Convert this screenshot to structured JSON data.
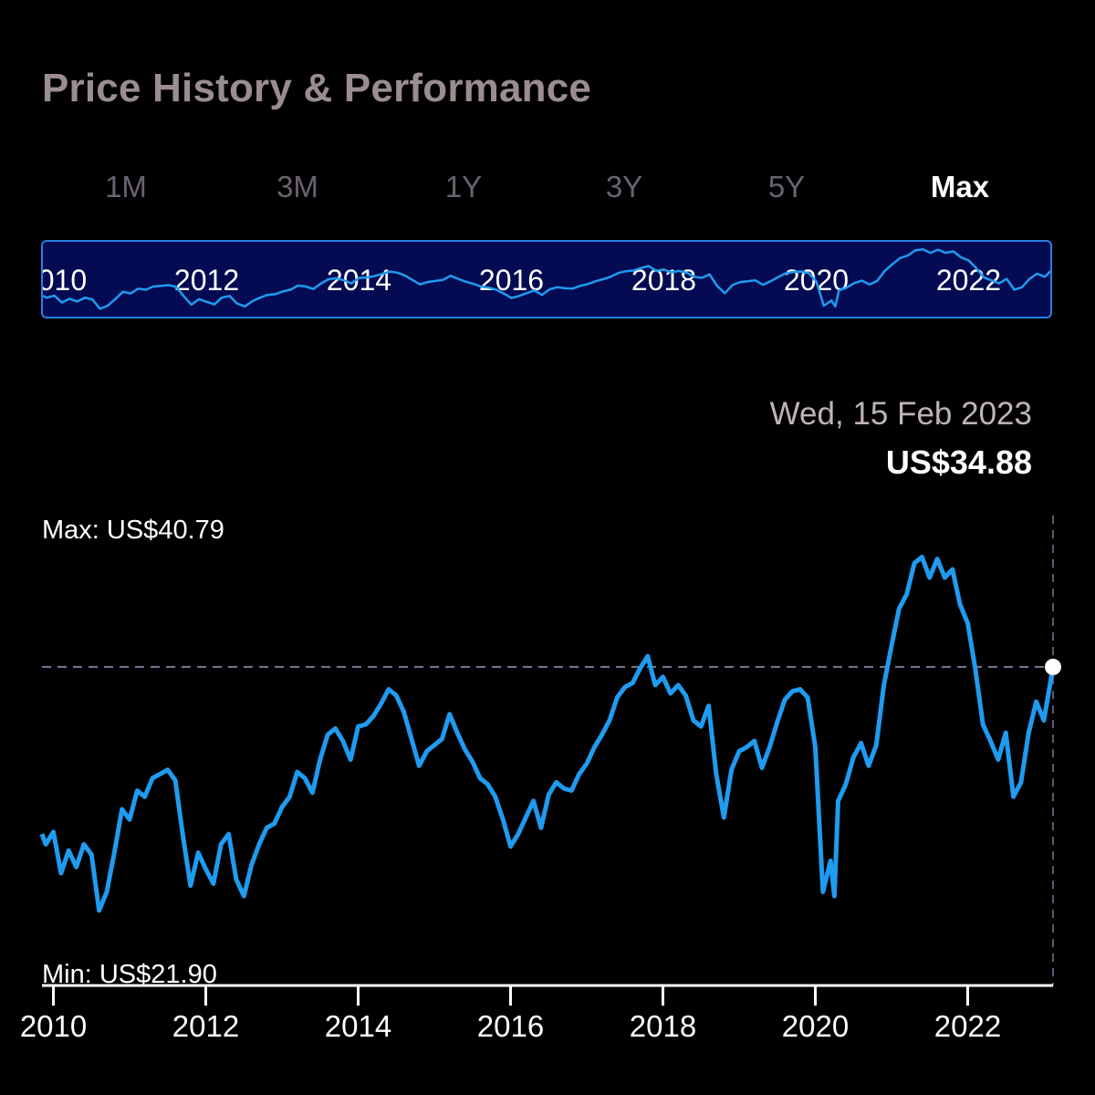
{
  "header": {
    "title": "Price History & Performance"
  },
  "tabs": [
    {
      "label": "1M",
      "active": false
    },
    {
      "label": "3M",
      "active": false
    },
    {
      "label": "1Y",
      "active": false
    },
    {
      "label": "3Y",
      "active": false
    },
    {
      "label": "5Y",
      "active": false
    },
    {
      "label": "Max",
      "active": true
    }
  ],
  "tooltip": {
    "date": "Wed, 15 Feb 2023",
    "price": "US$34.88"
  },
  "labels": {
    "max": "Max: US$40.79",
    "min": "Min: US$21.90"
  },
  "colors": {
    "line": "#1f9bf0",
    "navigator_bg": "#040b52",
    "navigator_border": "#2a7fe0",
    "title": "#9a8c93"
  },
  "chart_data": {
    "type": "line",
    "title": "",
    "xlabel": "",
    "ylabel": "",
    "x_tick_labels": [
      "2010",
      "2012",
      "2014",
      "2016",
      "2018",
      "2020",
      "2022"
    ],
    "x_ticks": [
      2010,
      2012,
      2014,
      2016,
      2018,
      2020,
      2022
    ],
    "xlim": [
      2009.85,
      2023.12
    ],
    "ylim": [
      21.9,
      40.79
    ],
    "reference_value": 34.88,
    "series": [
      {
        "x": [
          2009.85,
          2009.9,
          2010.0,
          2010.1,
          2010.2,
          2010.3,
          2010.4,
          2010.5,
          2010.6,
          2010.7,
          2010.8,
          2010.9,
          2011.0,
          2011.1,
          2011.2,
          2011.3,
          2011.4,
          2011.5,
          2011.6,
          2011.7,
          2011.8,
          2011.9,
          2012.0,
          2012.1,
          2012.2,
          2012.3,
          2012.4,
          2012.5,
          2012.6,
          2012.7,
          2012.8,
          2012.9,
          2013.0,
          2013.1,
          2013.2,
          2013.3,
          2013.4,
          2013.5,
          2013.6,
          2013.7,
          2013.8,
          2013.9,
          2014.0,
          2014.1,
          2014.2,
          2014.3,
          2014.4,
          2014.5,
          2014.6,
          2014.7,
          2014.8,
          2014.9,
          2015.0,
          2015.1,
          2015.2,
          2015.3,
          2015.4,
          2015.5,
          2015.6,
          2015.7,
          2015.8,
          2015.9,
          2016.0,
          2016.1,
          2016.2,
          2016.3,
          2016.4,
          2016.5,
          2016.6,
          2016.7,
          2016.8,
          2016.9,
          2017.0,
          2017.1,
          2017.2,
          2017.3,
          2017.4,
          2017.5,
          2017.6,
          2017.7,
          2017.8,
          2017.9,
          2018.0,
          2018.1,
          2018.2,
          2018.3,
          2018.4,
          2018.5,
          2018.6,
          2018.7,
          2018.8,
          2018.9,
          2019.0,
          2019.1,
          2019.2,
          2019.3,
          2019.4,
          2019.5,
          2019.6,
          2019.7,
          2019.8,
          2019.9,
          2020.0,
          2020.1,
          2020.2,
          2020.25,
          2020.3,
          2020.4,
          2020.5,
          2020.6,
          2020.7,
          2020.8,
          2020.9,
          2021.0,
          2021.1,
          2021.2,
          2021.3,
          2021.4,
          2021.5,
          2021.6,
          2021.7,
          2021.8,
          2021.9,
          2022.0,
          2022.1,
          2022.2,
          2022.3,
          2022.4,
          2022.5,
          2022.6,
          2022.7,
          2022.8,
          2022.9,
          2023.0,
          2023.12
        ],
        "values": [
          26.8,
          26.3,
          26.9,
          24.9,
          26.0,
          25.2,
          26.3,
          25.8,
          23.1,
          24.0,
          25.9,
          28.0,
          27.5,
          28.9,
          28.6,
          29.5,
          29.7,
          29.9,
          29.4,
          26.7,
          24.3,
          25.9,
          25.1,
          24.4,
          26.3,
          26.8,
          24.6,
          23.8,
          25.3,
          26.3,
          27.1,
          27.3,
          28.1,
          28.6,
          29.8,
          29.5,
          28.8,
          30.4,
          31.6,
          31.9,
          31.3,
          30.4,
          32.0,
          32.1,
          32.5,
          33.1,
          33.8,
          33.5,
          32.7,
          31.4,
          30.1,
          30.8,
          31.1,
          31.4,
          32.6,
          31.7,
          30.9,
          30.3,
          29.5,
          29.2,
          28.6,
          27.5,
          26.2,
          26.8,
          27.6,
          28.4,
          27.1,
          28.7,
          29.3,
          29.0,
          28.9,
          29.7,
          30.2,
          31.0,
          31.6,
          32.3,
          33.4,
          33.9,
          34.1,
          34.8,
          35.4,
          34.0,
          34.4,
          33.6,
          34.0,
          33.5,
          32.3,
          32.0,
          33.0,
          29.7,
          27.6,
          29.9,
          30.8,
          31.0,
          31.3,
          30.0,
          31.0,
          32.2,
          33.3,
          33.7,
          33.8,
          33.4,
          31.0,
          24.0,
          25.5,
          23.8,
          28.4,
          29.2,
          30.5,
          31.2,
          30.1,
          31.1,
          34.0,
          35.9,
          37.7,
          38.4,
          39.9,
          40.2,
          39.2,
          40.1,
          39.2,
          39.6,
          37.9,
          37.0,
          34.8,
          32.1,
          31.3,
          30.4,
          31.7,
          28.6,
          29.3,
          31.7,
          33.2,
          32.3,
          34.88
        ]
      }
    ]
  }
}
